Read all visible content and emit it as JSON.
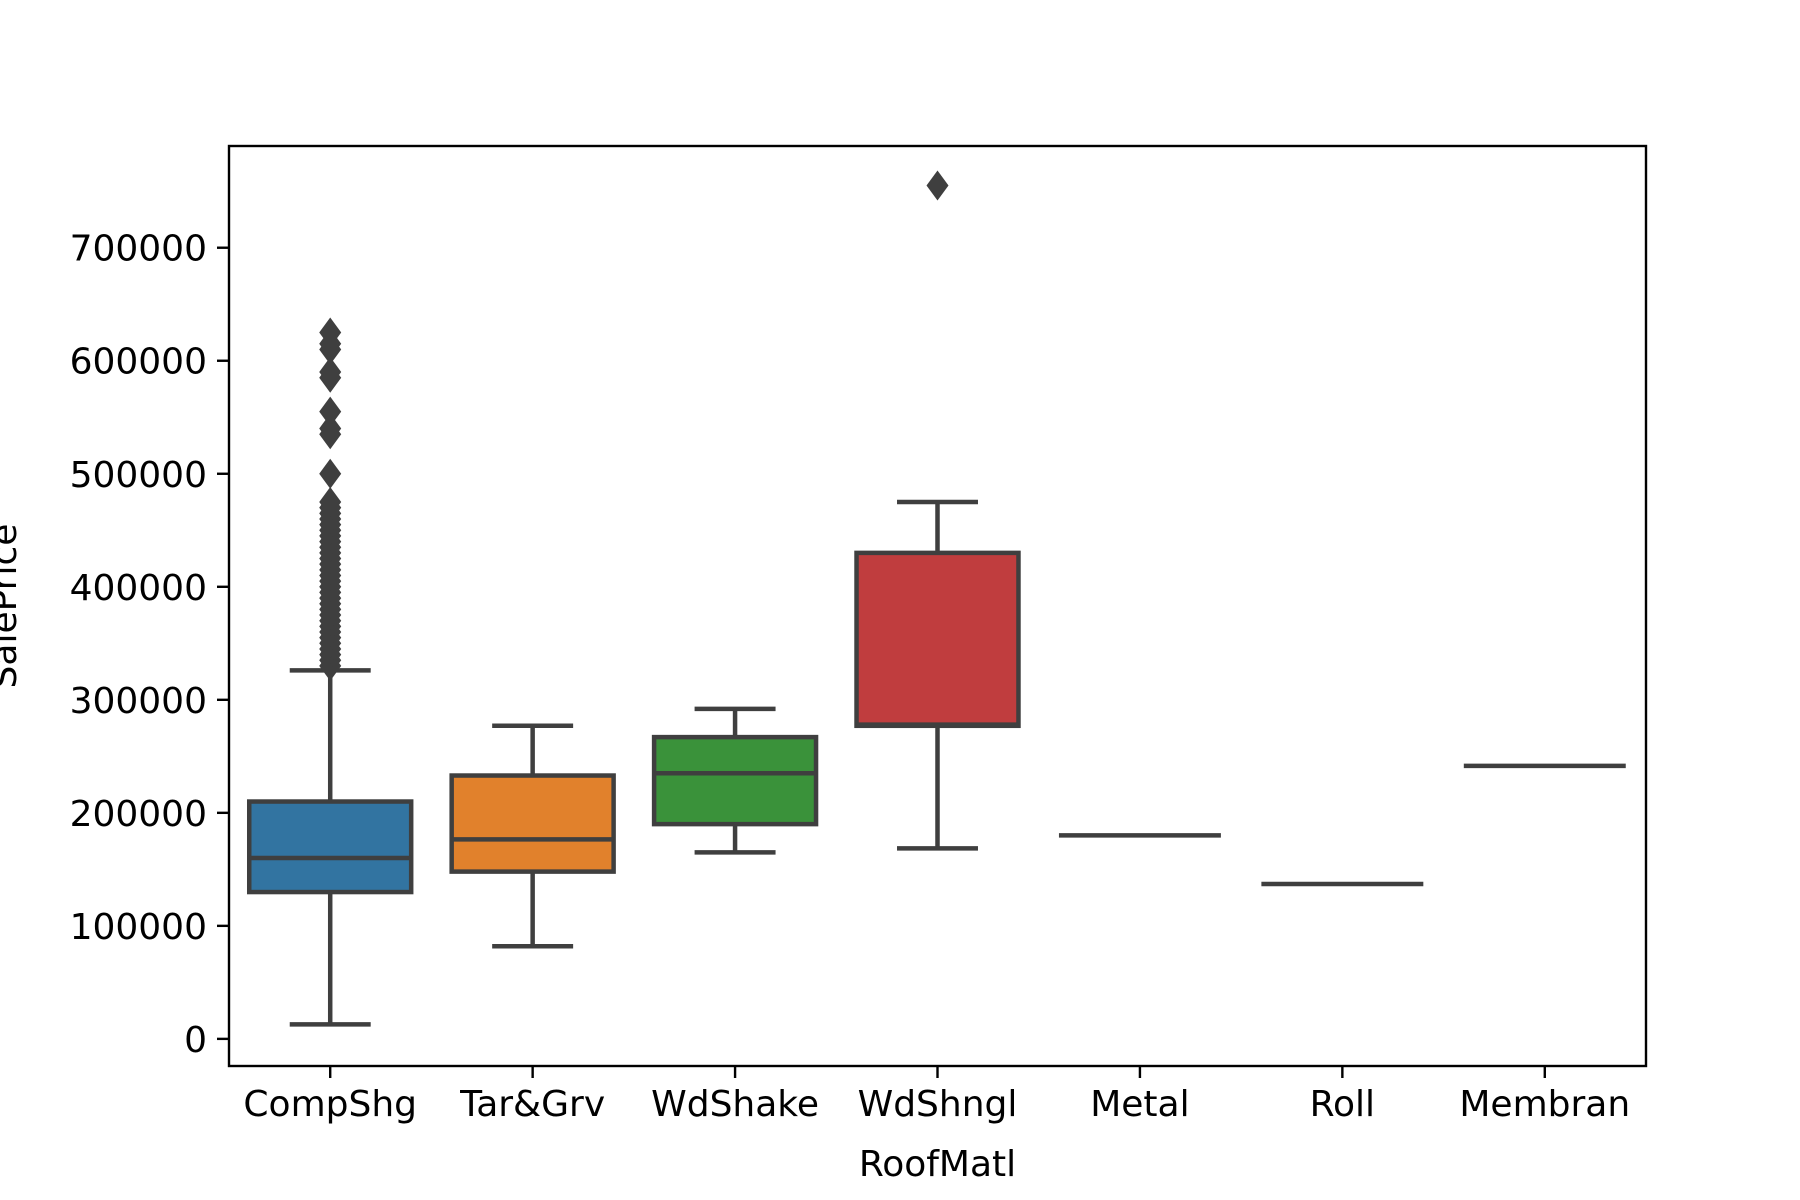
{
  "chart_data": {
    "type": "box",
    "xlabel": "RoofMatl",
    "ylabel": "SalePrice",
    "ylim": [
      -24000,
      790000
    ],
    "yticks": [
      0,
      100000,
      200000,
      300000,
      400000,
      500000,
      600000,
      700000
    ],
    "ytick_labels": [
      "0",
      "100000",
      "200000",
      "300000",
      "400000",
      "500000",
      "600000",
      "700000"
    ],
    "grid": false,
    "legend": "none",
    "categories": [
      "CompShg",
      "Tar&Grv",
      "WdShake",
      "WdShngl",
      "Metal",
      "Roll",
      "Membran"
    ],
    "boxes": [
      {
        "category": "CompShg",
        "whisker_low": 12789,
        "q1": 129900,
        "median": 160000,
        "q3": 210000,
        "whisker_high": 326000,
        "color": "#3274a1",
        "outliers": [
          330000,
          335000,
          340000,
          345000,
          350000,
          355000,
          360000,
          365000,
          370000,
          375000,
          380000,
          385000,
          390000,
          395000,
          400000,
          405000,
          410000,
          415000,
          420000,
          425000,
          430000,
          435000,
          440000,
          445000,
          450000,
          455000,
          460000,
          465000,
          470000,
          475000,
          500000,
          535000,
          540000,
          555000,
          585000,
          590000,
          610000,
          615000,
          625000
        ]
      },
      {
        "category": "Tar&Grv",
        "whisker_low": 82000,
        "q1": 148000,
        "median": 176500,
        "q3": 233000,
        "whisker_high": 277000,
        "color": "#e1812c",
        "outliers": []
      },
      {
        "category": "WdShake",
        "whisker_low": 165000,
        "q1": 190000,
        "median": 235000,
        "q3": 267000,
        "whisker_high": 292000,
        "color": "#3a923a",
        "outliers": []
      },
      {
        "category": "WdShngl",
        "whisker_low": 168500,
        "q1": 277000,
        "median": 278000,
        "q3": 430000,
        "whisker_high": 475000,
        "color": "#c03d3e",
        "outliers": [
          755000
        ]
      },
      {
        "category": "Metal",
        "whisker_low": 180000,
        "q1": 180000,
        "median": 180000,
        "q3": 180000,
        "whisker_high": 180000,
        "color": "#9372b2",
        "outliers": []
      },
      {
        "category": "Roll",
        "whisker_low": 137000,
        "q1": 137000,
        "median": 137000,
        "q3": 137000,
        "whisker_high": 137000,
        "color": "#845b53",
        "outliers": []
      },
      {
        "category": "Membran",
        "whisker_low": 241500,
        "q1": 241500,
        "median": 241500,
        "q3": 241500,
        "whisker_high": 241500,
        "color": "#d684bd",
        "outliers": []
      }
    ]
  }
}
